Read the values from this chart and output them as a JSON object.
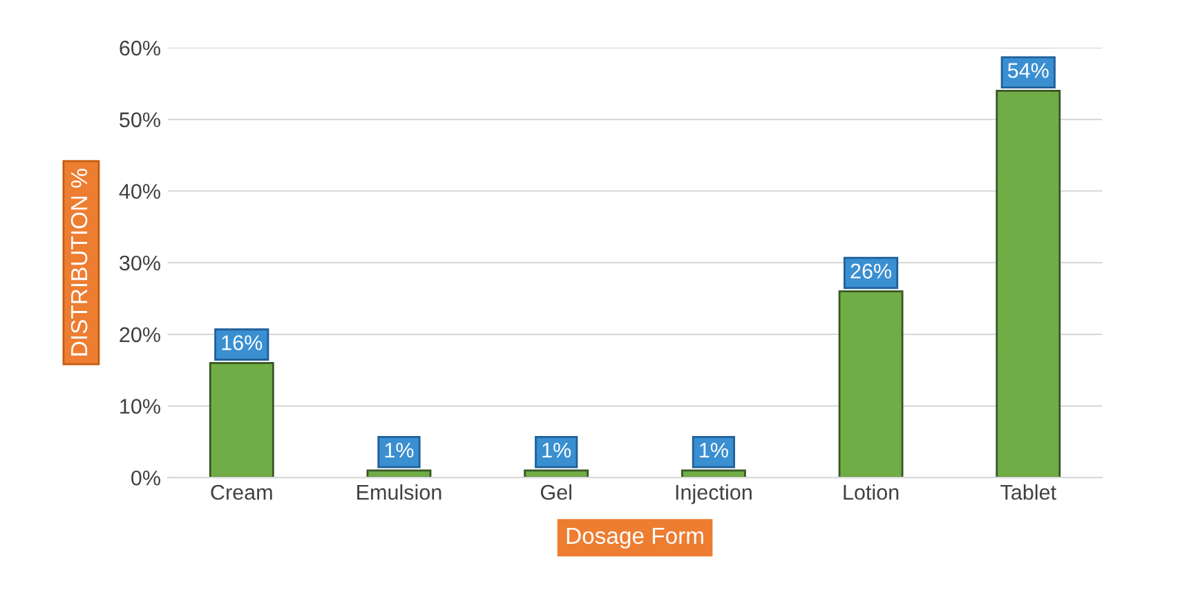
{
  "chart_data": {
    "type": "bar",
    "xlabel": "Dosage Form",
    "ylabel": "DISTRIBUTION %",
    "categories": [
      "Cream",
      "Emulsion",
      "Gel",
      "Injection",
      "Lotion",
      "Tablet"
    ],
    "values": [
      16,
      1,
      1,
      1,
      26,
      54
    ],
    "value_labels": [
      "16%",
      "1%",
      "1%",
      "1%",
      "26%",
      "54%"
    ],
    "color": "#70ad47",
    "ylim": [
      0,
      60
    ],
    "yticks": [
      {
        "value": 0,
        "label": "0%"
      },
      {
        "value": 10,
        "label": "10%"
      },
      {
        "value": 20,
        "label": "20%"
      },
      {
        "value": 30,
        "label": "30%"
      },
      {
        "value": 40,
        "label": "40%"
      },
      {
        "value": 50,
        "label": "50%"
      },
      {
        "value": 60,
        "label": "60%"
      }
    ],
    "grid": "y"
  }
}
